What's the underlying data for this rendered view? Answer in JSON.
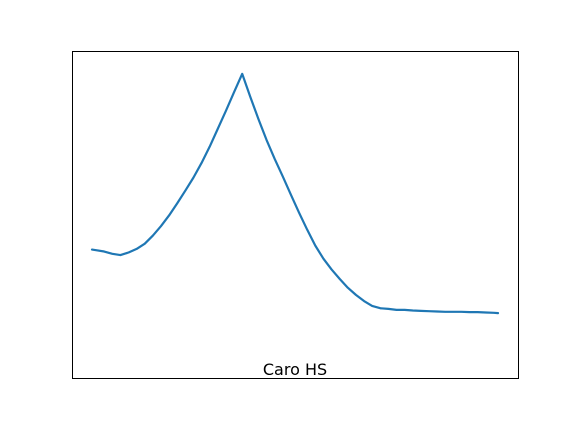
{
  "chart_data": {
    "type": "line",
    "title": "Caro HS",
    "title_position": "bottom-center-inside-axes",
    "xlabel": "",
    "ylabel": "",
    "grid": false,
    "ticks_visible": false,
    "xlim": [
      0,
      100
    ],
    "ylim": [
      0,
      100
    ],
    "series": [
      {
        "name": "Caro HS",
        "color": "#1f77b4",
        "x": [
          0,
          1,
          3,
          5,
          7,
          9,
          11,
          13,
          15,
          17,
          19,
          21,
          23,
          25,
          27,
          29,
          31,
          33,
          35,
          37,
          39,
          41,
          43,
          45,
          47,
          49,
          51,
          53,
          55,
          57,
          59,
          61,
          63,
          65,
          67,
          69,
          71,
          73,
          75,
          77,
          79,
          81,
          83,
          85,
          87,
          89,
          91,
          93,
          95,
          97,
          99,
          100
        ],
        "values": [
          39.4,
          39.2,
          38.8,
          38.1,
          37.7,
          38.5,
          39.6,
          41.2,
          43.7,
          46.6,
          49.9,
          53.6,
          57.5,
          61.5,
          66.0,
          71.0,
          76.5,
          82.0,
          87.7,
          93.3,
          86.2,
          79.4,
          73.0,
          67.2,
          61.8,
          56.2,
          50.7,
          45.5,
          40.6,
          36.6,
          33.3,
          30.4,
          27.7,
          25.5,
          23.6,
          22.1,
          21.4,
          21.2,
          20.9,
          20.9,
          20.7,
          20.6,
          20.5,
          20.4,
          20.3,
          20.3,
          20.3,
          20.2,
          20.2,
          20.1,
          20.0,
          19.9
        ]
      }
    ]
  }
}
